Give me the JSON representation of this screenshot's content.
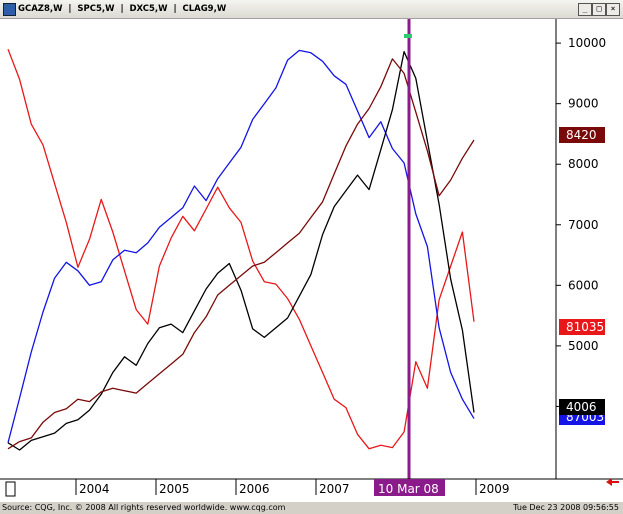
{
  "window": {
    "title": "GCAZ8,W  |  SPC5,W  |  DXC5,W  |  CLAG9,W",
    "controls": {
      "minimize": "_",
      "maximize": "□",
      "close": "×"
    }
  },
  "chart_data": {
    "type": "line",
    "x_ticks": [
      "2004",
      "2005",
      "2006",
      "2007",
      "2009"
    ],
    "y_ticks": [
      10000,
      9000,
      8000,
      7000,
      6000,
      5000,
      4000
    ],
    "ylim": [
      3000,
      10200
    ],
    "cursor_label": "10 Mar 08",
    "series": [
      {
        "color": "#e8181a",
        "last_label": "81035",
        "values": [
          9900,
          9400,
          8700,
          8300,
          7700,
          7000,
          6300,
          6800,
          7400,
          6900,
          6200,
          5600,
          5400,
          6300,
          6800,
          7100,
          6900,
          7300,
          7600,
          7300,
          7000,
          6400,
          6100,
          6000,
          5800,
          5400,
          5000,
          4600,
          4100,
          4000,
          3500,
          3300,
          3400,
          3300,
          3600,
          4700,
          4300,
          5800,
          6300,
          6900,
          5400
        ]
      },
      {
        "color": "#1414e6",
        "last_label": "87003",
        "values": [
          3400,
          4100,
          4900,
          5600,
          6100,
          6400,
          6200,
          6000,
          6100,
          6400,
          6600,
          6500,
          6700,
          7000,
          7100,
          7300,
          7600,
          7400,
          7800,
          8000,
          8300,
          8700,
          9000,
          9300,
          9700,
          9900,
          9800,
          9700,
          9500,
          9300,
          8900,
          8400,
          8700,
          8300,
          8000,
          7200,
          6600,
          5300,
          4600,
          4100,
          3800
        ]
      },
      {
        "color": "#000000",
        "last_label": "4006",
        "values": [
          3400,
          3300,
          3400,
          3500,
          3600,
          3700,
          3800,
          3900,
          4200,
          4600,
          4800,
          4700,
          5000,
          5300,
          5400,
          5200,
          5600,
          5900,
          6200,
          6400,
          5900,
          5300,
          5100,
          5300,
          5500,
          5800,
          6200,
          6800,
          7300,
          7600,
          7800,
          7600,
          8200,
          8900,
          9900,
          9400,
          8400,
          7300,
          6100,
          5300,
          3900
        ]
      },
      {
        "color": "#7a0a0a",
        "last_label": "8420",
        "values": [
          3300,
          3400,
          3500,
          3700,
          3900,
          4000,
          4100,
          4100,
          4200,
          4300,
          4300,
          4200,
          4400,
          4500,
          4700,
          4900,
          5200,
          5500,
          5800,
          6000,
          6200,
          6300,
          6400,
          6500,
          6700,
          6900,
          7100,
          7400,
          7800,
          8300,
          8700,
          8900,
          9300,
          9700,
          9500,
          8900,
          8200,
          7500,
          7700,
          8100,
          8400
        ]
      }
    ]
  },
  "status": {
    "source": "Source: CQG, Inc. © 2008 All rights reserved worldwide. www.cqg.com",
    "timestamp": "Tue Dec 23 2008 09:56:55"
  }
}
